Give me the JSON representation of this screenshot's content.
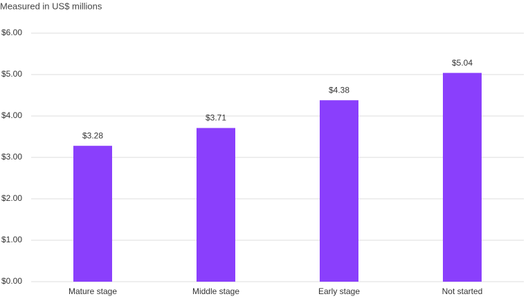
{
  "chart_data": {
    "type": "bar",
    "subtitle": "Measured in US$ millions",
    "categories": [
      "Mature stage",
      "Middle stage",
      "Early stage",
      "Not started"
    ],
    "values": [
      3.28,
      3.71,
      4.38,
      5.04
    ],
    "value_labels": [
      "$3.28",
      "$3.71",
      "$4.38",
      "$5.04"
    ],
    "color": "#8a3ffc",
    "ylim": [
      0,
      6
    ],
    "yticks": [
      {
        "value": 0,
        "label": "$0.00"
      },
      {
        "value": 1,
        "label": "$1.00"
      },
      {
        "value": 2,
        "label": "$2.00"
      },
      {
        "value": 3,
        "label": "$3.00"
      },
      {
        "value": 4,
        "label": "$4.00"
      },
      {
        "value": 5,
        "label": "$5.00"
      },
      {
        "value": 6,
        "label": "$6.00"
      }
    ],
    "grid": true
  }
}
